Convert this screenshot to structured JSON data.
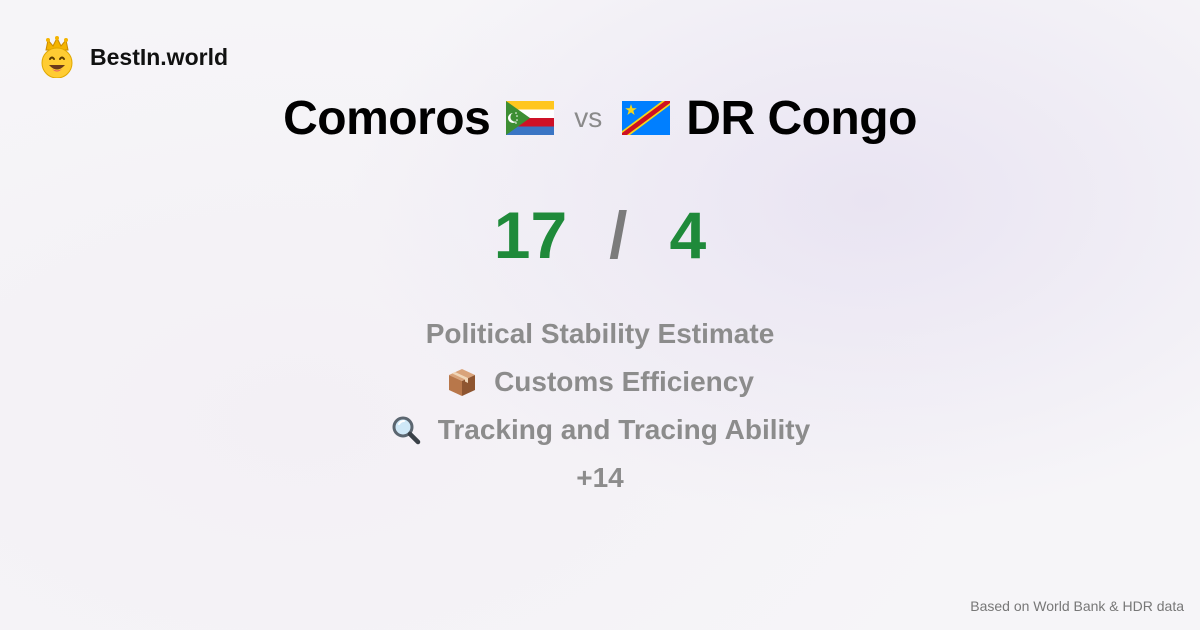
{
  "brand": {
    "name": "BestIn.world",
    "logo_icon": "crowned-smiley-icon"
  },
  "header": {
    "left_country": "Comoros",
    "left_flag_icon": "comoros-flag-icon",
    "vs_label": "vs",
    "right_country": "DR Congo",
    "right_flag_icon": "dr-congo-flag-icon"
  },
  "score": {
    "left": "17",
    "separator": "/",
    "right": "4"
  },
  "metrics": [
    {
      "label": "Political Stability Estimate",
      "icon": ""
    },
    {
      "label": "Customs Efficiency",
      "icon": "package-icon"
    },
    {
      "label": "Tracking and Tracing Ability",
      "icon": "magnifier-icon"
    }
  ],
  "more_count": "+14",
  "footer": {
    "source": "Based on World Bank & HDR data"
  },
  "colors": {
    "score_green": "#1f8a3a",
    "muted_gray": "#8c8c8c"
  }
}
